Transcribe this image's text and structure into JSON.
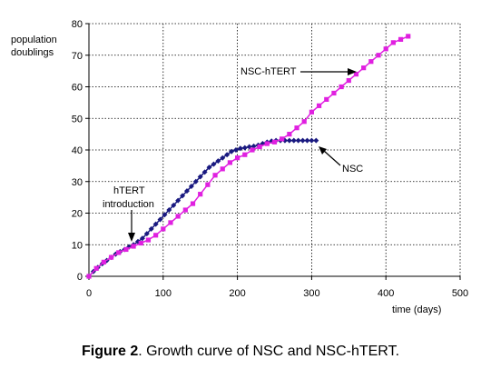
{
  "chart_data": {
    "type": "line",
    "title": "",
    "ylabel_lines": [
      "population",
      "doublings"
    ],
    "xlabel": "time (days)",
    "xlim": [
      0,
      500
    ],
    "ylim": [
      0,
      80
    ],
    "xticks": [
      0,
      100,
      200,
      300,
      400,
      500
    ],
    "yticks": [
      0,
      10,
      20,
      30,
      40,
      50,
      60,
      70,
      80
    ],
    "grid": true,
    "series": [
      {
        "name": "NSC",
        "color": "#1a1a80",
        "marker": "diamond",
        "x": [
          0,
          6,
          12,
          18,
          24,
          30,
          36,
          42,
          48,
          54,
          60,
          66,
          72,
          78,
          84,
          90,
          96,
          102,
          108,
          114,
          120,
          126,
          132,
          138,
          144,
          150,
          156,
          162,
          168,
          174,
          180,
          186,
          192,
          198,
          204,
          210,
          216,
          222,
          228,
          234,
          240,
          246,
          252,
          258,
          264,
          270,
          276,
          282,
          288,
          294,
          300,
          306
        ],
        "y": [
          0,
          1.5,
          2.8,
          4,
          5,
          6,
          7,
          7.8,
          8.5,
          9.3,
          10,
          11,
          12,
          13.5,
          15,
          16.5,
          18,
          19.5,
          21,
          22.5,
          24,
          25.5,
          27,
          28.5,
          30,
          31.5,
          33,
          34.5,
          35.5,
          36.5,
          37.5,
          38.5,
          39.5,
          40,
          40.5,
          40.7,
          41,
          41.2,
          41.5,
          42,
          42.5,
          42.8,
          43,
          43,
          43,
          43,
          43,
          43,
          43,
          43,
          43,
          43
        ]
      },
      {
        "name": "NSC-hTERT",
        "color": "#e020e0",
        "marker": "square",
        "x": [
          0,
          10,
          20,
          30,
          40,
          50,
          60,
          70,
          80,
          90,
          100,
          110,
          120,
          130,
          140,
          150,
          160,
          170,
          180,
          190,
          200,
          210,
          220,
          230,
          240,
          250,
          260,
          270,
          280,
          290,
          300,
          310,
          320,
          330,
          340,
          350,
          360,
          370,
          380,
          390,
          400,
          410,
          420,
          430
        ],
        "y": [
          0,
          2.5,
          4.5,
          6,
          7.5,
          8.5,
          9.5,
          10.5,
          11.5,
          13,
          15,
          17,
          19,
          21,
          23,
          26,
          29,
          32,
          34,
          36,
          37.5,
          38.5,
          40,
          41,
          42,
          42.5,
          43.5,
          45,
          47,
          49,
          52,
          54,
          56,
          58,
          60,
          62,
          64,
          66,
          68,
          70,
          72,
          74,
          75,
          76
        ]
      }
    ],
    "annotations": [
      {
        "text": "NSC-hTERT"
      },
      {
        "text": "NSC"
      },
      {
        "lines": [
          "hTERT",
          "introduction"
        ]
      }
    ]
  },
  "caption": {
    "label": "Figure 2",
    "text": ". Growth curve of NSC and NSC-hTERT."
  }
}
